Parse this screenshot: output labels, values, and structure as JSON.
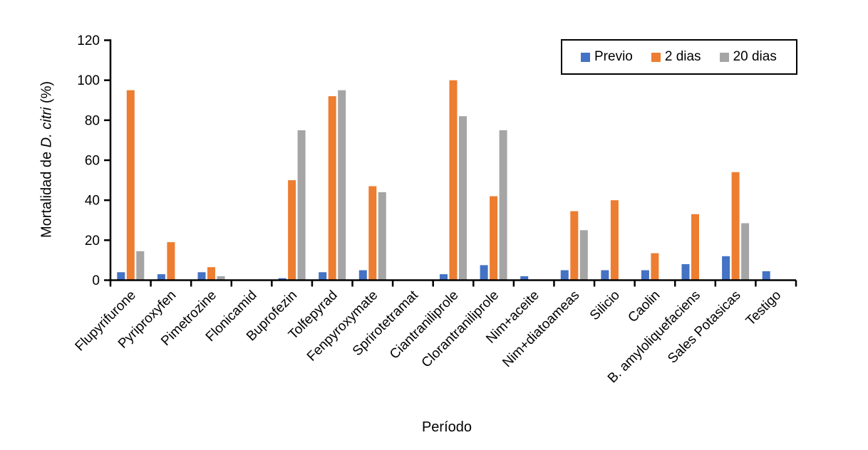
{
  "chart_data": {
    "type": "bar",
    "title": "",
    "categories": [
      "Flupyrifurone",
      "Pyriproxyfen",
      "Pimetrozine",
      "Flonicamid",
      "Buprofezin",
      "Tolfepyrad",
      "Fenpyroxymate",
      "Sprirotetramat",
      "Ciantraniliprole",
      "Clorantraniliprole",
      "Nim+aceite",
      "Nim+diatoameas",
      "Silicio",
      "Caolin",
      "B. amyloliquefaciens",
      "Sales Potasicas",
      "Testigo"
    ],
    "series": [
      {
        "name": "Previo",
        "color": "#4472C4",
        "values": [
          4,
          3,
          4,
          0,
          1,
          4,
          5,
          0,
          3,
          7.5,
          2,
          5,
          5,
          5,
          8,
          12,
          4.5
        ]
      },
      {
        "name": "2 dias",
        "color": "#ED7D31",
        "values": [
          95,
          19,
          6.5,
          0,
          50,
          92,
          47,
          0,
          100,
          42,
          0,
          34.5,
          40,
          13.5,
          33,
          54,
          0
        ]
      },
      {
        "name": "20 dias",
        "color": "#A5A5A5",
        "values": [
          14.5,
          0,
          2,
          0,
          75,
          95,
          44,
          0,
          82,
          75,
          0,
          25,
          0,
          0,
          0,
          28.5,
          0
        ]
      }
    ],
    "xlabel": "Período",
    "ylabel": "Mortalidad de D. citri (%)",
    "ylabel_parts": {
      "prefix": "Mortalidad de ",
      "italic": "D. citri",
      "suffix": " (%)"
    },
    "ylim": [
      0,
      120
    ],
    "yticks": [
      0,
      20,
      40,
      60,
      80,
      100,
      120
    ],
    "grid": false,
    "legend_position": "top-right",
    "axis_color": "#000000",
    "background": "#FFFFFF"
  }
}
